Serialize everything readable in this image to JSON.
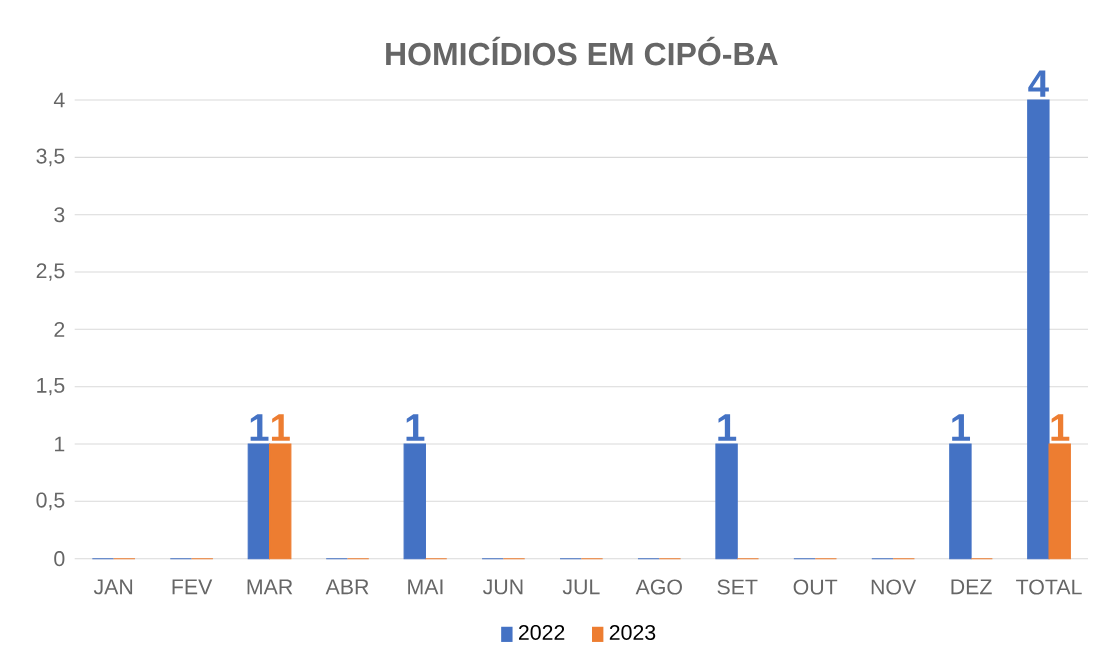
{
  "chart_data": {
    "type": "bar",
    "title": "HOMICÍDIOS EM CIPÓ-BA",
    "categories": [
      "JAN",
      "FEV",
      "MAR",
      "ABR",
      "MAI",
      "JUN",
      "JUL",
      "AGO",
      "SET",
      "OUT",
      "NOV",
      "DEZ",
      "TOTAL"
    ],
    "series": [
      {
        "name": "2022",
        "color": "#4472c4",
        "values": [
          0,
          0,
          1,
          0,
          1,
          0,
          0,
          0,
          1,
          0,
          0,
          1,
          4
        ],
        "value_labels": [
          null,
          null,
          "1",
          null,
          "1",
          null,
          null,
          null,
          "1",
          null,
          null,
          "1",
          "4"
        ]
      },
      {
        "name": "2023",
        "color": "#ed7d31",
        "values": [
          0,
          0,
          1,
          0,
          0,
          0,
          0,
          0,
          0,
          0,
          0,
          0,
          1
        ],
        "value_labels": [
          null,
          null,
          "1",
          null,
          null,
          null,
          null,
          null,
          null,
          null,
          null,
          null,
          "1"
        ]
      }
    ],
    "ylim": [
      0,
      4
    ],
    "yticks": [
      0,
      {
        "value": 0.5,
        "label": "0,5"
      },
      1,
      {
        "value": 1.5,
        "label": "1,5"
      },
      2,
      {
        "value": 2.5,
        "label": "2,5"
      },
      3,
      {
        "value": 3.5,
        "label": "3,5"
      },
      4
    ],
    "grid": "y",
    "legend": "bottom"
  }
}
